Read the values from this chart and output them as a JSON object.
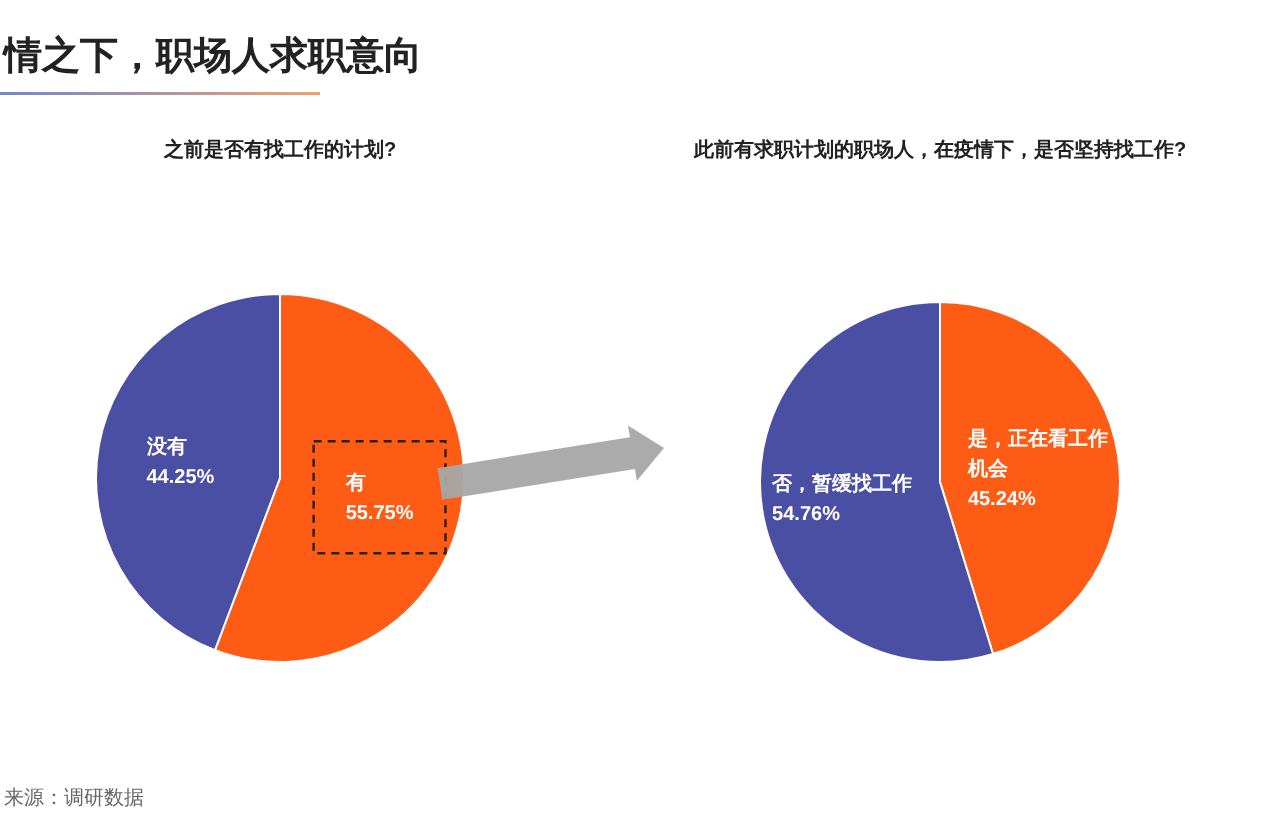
{
  "chart_data": [
    {
      "type": "pie",
      "title": "情之下，职场人求职意向",
      "subtitle": "之前是否有找工作的计划?",
      "categories": [
        "有",
        "没有"
      ],
      "values": [
        55.75,
        44.25
      ],
      "colors": [
        "#fe5c14",
        "#4a4fa3"
      ],
      "value_labels": [
        "55.75%",
        "44.25%"
      ],
      "annotations": [
        "来源：调研数据"
      ]
    },
    {
      "type": "pie",
      "subtitle": "此前有求职计划的职场人，在疫情下，是否坚持找工作?",
      "categories": [
        "是，正在看工作机会",
        "否，暂缓找工作"
      ],
      "values": [
        45.24,
        54.76
      ],
      "colors": [
        "#fe5c14",
        "#4a4fa3"
      ],
      "value_labels": [
        "45.24%",
        "54.76%"
      ]
    }
  ]
}
